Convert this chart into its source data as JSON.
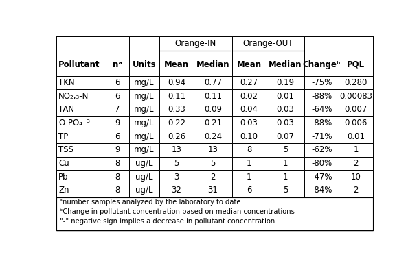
{
  "col_headers": [
    "Pollutant",
    "nᵃ",
    "Units",
    "Mean",
    "Median",
    "Mean",
    "Median",
    "Changeᵇ",
    "PQL"
  ],
  "group_header_in": "Orange-IN",
  "group_header_out": "Orange-OUT",
  "group_in_cols": [
    3,
    4
  ],
  "group_out_cols": [
    5,
    6
  ],
  "rows": [
    [
      "TKN",
      "6",
      "mg/L",
      "0.94",
      "0.77",
      "0.27",
      "0.19",
      "-75%",
      "0.280"
    ],
    [
      "NO₂,₃-N",
      "6",
      "mg/L",
      "0.11",
      "0.11",
      "0.02",
      "0.01",
      "-88%",
      "0.00083"
    ],
    [
      "TAN",
      "7",
      "mg/L",
      "0.33",
      "0.09",
      "0.04",
      "0.03",
      "-64%",
      "0.007"
    ],
    [
      "O-PO₄⁻³",
      "9",
      "mg/L",
      "0.22",
      "0.21",
      "0.03",
      "0.03",
      "-88%",
      "0.006"
    ],
    [
      "TP",
      "6",
      "mg/L",
      "0.26",
      "0.24",
      "0.10",
      "0.07",
      "-71%",
      "0.01"
    ],
    [
      "TSS",
      "9",
      "mg/L",
      "13",
      "13",
      "8",
      "5",
      "-62%",
      "1"
    ],
    [
      "Cu",
      "8",
      "ug/L",
      "5",
      "5",
      "1",
      "1",
      "-80%",
      "2"
    ],
    [
      "Pb",
      "8",
      "ug/L",
      "3",
      "2",
      "1",
      "1",
      "-47%",
      "10"
    ],
    [
      "Zn",
      "8",
      "ug/L",
      "32",
      "31",
      "6",
      "5",
      "-84%",
      "2"
    ]
  ],
  "footnotes": [
    "ᵃnumber samples analyzed by the laboratory to date",
    "ᵇChange in pollutant concentration based on median concentrations",
    "\"-\" negative sign implies a decrease in pollutant concentration"
  ],
  "col_widths_norm": [
    1.3,
    0.6,
    0.8,
    0.9,
    1.0,
    0.9,
    1.0,
    0.9,
    0.9
  ],
  "background_color": "#ffffff",
  "header_fontsize": 8.5,
  "cell_fontsize": 8.5,
  "footnote_fontsize": 7.2
}
